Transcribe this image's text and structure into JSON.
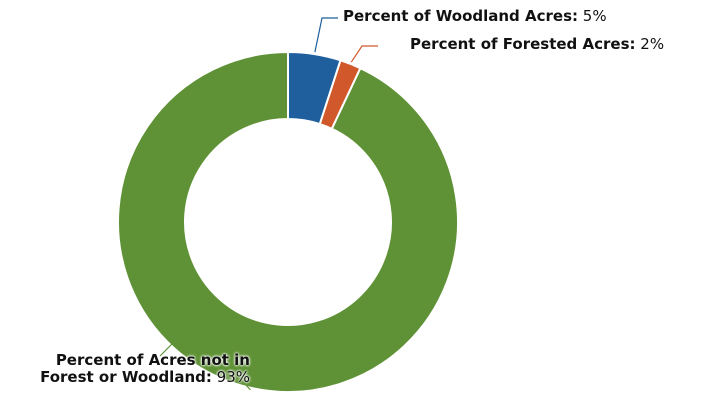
{
  "chart_data": {
    "type": "pie",
    "donut": true,
    "title": "",
    "slices": [
      {
        "name": "Percent of Woodland Acres",
        "value": 5,
        "label_value": "5%",
        "color": "#1f5f9e"
      },
      {
        "name": "Percent of Forested Acres",
        "value": 2,
        "label_value": "2%",
        "color": "#d0582a"
      },
      {
        "name_line1": "Percent of Acres not in",
        "name_line2": "Forest or Woodland",
        "value": 93,
        "label_value": "93%",
        "color": "#5f9236"
      }
    ],
    "legend": "none"
  }
}
